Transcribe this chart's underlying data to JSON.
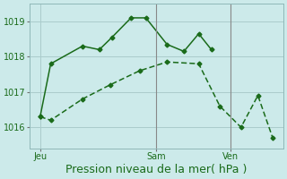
{
  "xlabel": "Pression niveau de la mer( hPa )",
  "bg_color": "#cceaea",
  "grid_color": "#aacccc",
  "line_color": "#1a6b1a",
  "line1_x": [
    0,
    0.5,
    2.0,
    2.8,
    3.4,
    4.3,
    5.0,
    6.0,
    6.8,
    7.5,
    8.1
  ],
  "line1_y": [
    1016.3,
    1017.8,
    1018.3,
    1018.2,
    1018.55,
    1019.1,
    1019.1,
    1018.35,
    1018.15,
    1018.65,
    1018.2
  ],
  "line2_x": [
    0,
    0.5,
    2.0,
    3.3,
    4.7,
    6.0,
    7.5,
    8.5,
    9.5,
    10.3,
    11.0
  ],
  "line2_y": [
    1016.3,
    1016.2,
    1016.8,
    1017.2,
    1017.6,
    1017.85,
    1017.8,
    1016.6,
    1016.0,
    1016.9,
    1015.7
  ],
  "xtick_positions": [
    0.0,
    5.5,
    9.0
  ],
  "xtick_labels": [
    "Jeu",
    "Sam",
    "Ven"
  ],
  "ytick_positions": [
    1016,
    1017,
    1018,
    1019
  ],
  "ylim": [
    1015.4,
    1019.5
  ],
  "xlim": [
    -0.5,
    11.5
  ],
  "vline_x": 5.5,
  "vline2_x": 9.0,
  "font_size_xlabel": 9,
  "font_size_tick": 7
}
